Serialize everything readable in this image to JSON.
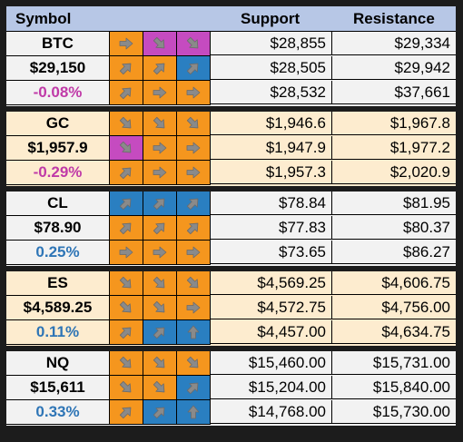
{
  "header": {
    "symbol": "Symbol",
    "support": "Support",
    "resistance": "Resistance",
    "background": "#b7c7e6"
  },
  "colors": {
    "orange": "#f5961e",
    "pink": "#c54bc0",
    "blue": "#2a7fc1",
    "positive": "#2e75b6",
    "negative": "#c03aa8"
  },
  "blocks": [
    {
      "name": "BTC",
      "price": "$29,150",
      "change": "-0.08%",
      "change_sign": "neg",
      "background": "#f2f2f2",
      "rows": [
        {
          "arrows": [
            {
              "dir": "right",
              "color": "orange"
            },
            {
              "dir": "down-right",
              "color": "pink"
            },
            {
              "dir": "down-right",
              "color": "pink"
            }
          ],
          "support": "$28,855",
          "resistance": "$29,334"
        },
        {
          "arrows": [
            {
              "dir": "up-right",
              "color": "orange"
            },
            {
              "dir": "up-right",
              "color": "orange"
            },
            {
              "dir": "up-right",
              "color": "blue"
            }
          ],
          "support": "$28,505",
          "resistance": "$29,942"
        },
        {
          "arrows": [
            {
              "dir": "up-right",
              "color": "orange"
            },
            {
              "dir": "right",
              "color": "orange"
            },
            {
              "dir": "right",
              "color": "orange"
            }
          ],
          "support": "$28,532",
          "resistance": "$37,661"
        }
      ]
    },
    {
      "name": "GC",
      "price": "$1,957.9",
      "change": "-0.29%",
      "change_sign": "neg",
      "background": "#fdeccf",
      "rows": [
        {
          "arrows": [
            {
              "dir": "down-right",
              "color": "orange"
            },
            {
              "dir": "down-right",
              "color": "orange"
            },
            {
              "dir": "down-right",
              "color": "orange"
            }
          ],
          "support": "$1,946.6",
          "resistance": "$1,967.8"
        },
        {
          "arrows": [
            {
              "dir": "down-right",
              "color": "pink"
            },
            {
              "dir": "right",
              "color": "orange"
            },
            {
              "dir": "right",
              "color": "orange"
            }
          ],
          "support": "$1,947.9",
          "resistance": "$1,977.2"
        },
        {
          "arrows": [
            {
              "dir": "up-right",
              "color": "orange"
            },
            {
              "dir": "right",
              "color": "orange"
            },
            {
              "dir": "right",
              "color": "orange"
            }
          ],
          "support": "$1,957.3",
          "resistance": "$2,020.9"
        }
      ]
    },
    {
      "name": "CL",
      "price": "$78.90",
      "change": "0.25%",
      "change_sign": "pos",
      "background": "#f2f2f2",
      "rows": [
        {
          "arrows": [
            {
              "dir": "up-right",
              "color": "blue"
            },
            {
              "dir": "up-right",
              "color": "blue"
            },
            {
              "dir": "up-right",
              "color": "blue"
            }
          ],
          "support": "$78.84",
          "resistance": "$81.95"
        },
        {
          "arrows": [
            {
              "dir": "up-right",
              "color": "orange"
            },
            {
              "dir": "up-right",
              "color": "orange"
            },
            {
              "dir": "up-right",
              "color": "orange"
            }
          ],
          "support": "$77.83",
          "resistance": "$80.37"
        },
        {
          "arrows": [
            {
              "dir": "right",
              "color": "orange"
            },
            {
              "dir": "right",
              "color": "orange"
            },
            {
              "dir": "right",
              "color": "orange"
            }
          ],
          "support": "$73.65",
          "resistance": "$86.27"
        }
      ]
    },
    {
      "name": "ES",
      "price": "$4,589.25",
      "change": "0.11%",
      "change_sign": "pos",
      "background": "#fdeccf",
      "rows": [
        {
          "arrows": [
            {
              "dir": "down-right",
              "color": "orange"
            },
            {
              "dir": "down-right",
              "color": "orange"
            },
            {
              "dir": "down-right",
              "color": "orange"
            }
          ],
          "support": "$4,569.25",
          "resistance": "$4,606.75"
        },
        {
          "arrows": [
            {
              "dir": "down-right",
              "color": "orange"
            },
            {
              "dir": "down-right",
              "color": "orange"
            },
            {
              "dir": "right",
              "color": "orange"
            }
          ],
          "support": "$4,572.75",
          "resistance": "$4,756.00"
        },
        {
          "arrows": [
            {
              "dir": "up-right",
              "color": "orange"
            },
            {
              "dir": "up-right",
              "color": "blue"
            },
            {
              "dir": "up",
              "color": "blue"
            }
          ],
          "support": "$4,457.00",
          "resistance": "$4,634.75"
        }
      ]
    },
    {
      "name": "NQ",
      "price": "$15,611",
      "change": "0.33%",
      "change_sign": "pos",
      "background": "#f2f2f2",
      "rows": [
        {
          "arrows": [
            {
              "dir": "down-right",
              "color": "orange"
            },
            {
              "dir": "down-right",
              "color": "orange"
            },
            {
              "dir": "down-right",
              "color": "orange"
            }
          ],
          "support": "$15,460.00",
          "resistance": "$15,731.00"
        },
        {
          "arrows": [
            {
              "dir": "down-right",
              "color": "orange"
            },
            {
              "dir": "down-right",
              "color": "orange"
            },
            {
              "dir": "up-right",
              "color": "blue"
            }
          ],
          "support": "$15,204.00",
          "resistance": "$15,840.00"
        },
        {
          "arrows": [
            {
              "dir": "up-right",
              "color": "orange"
            },
            {
              "dir": "up-right",
              "color": "blue"
            },
            {
              "dir": "up",
              "color": "blue"
            }
          ],
          "support": "$14,768.00",
          "resistance": "$15,730.00"
        }
      ]
    }
  ]
}
